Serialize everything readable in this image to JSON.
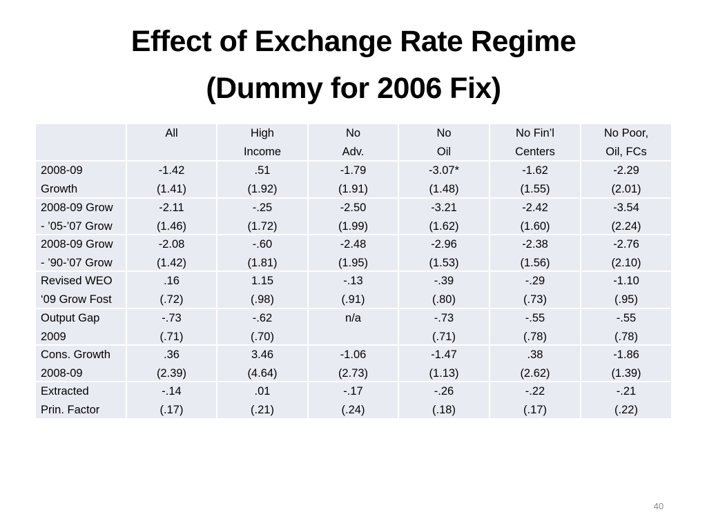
{
  "title": {
    "line1": "Effect of Exchange Rate Regime",
    "line2": "(Dummy for 2006 Fix)"
  },
  "table": {
    "header": [
      [
        "All"
      ],
      [
        "High",
        "Income"
      ],
      [
        "No",
        "Adv."
      ],
      [
        "No",
        "Oil"
      ],
      [
        "No Fin’l",
        "Centers"
      ],
      [
        "No Poor,",
        "Oil, FCs"
      ]
    ],
    "rows": [
      {
        "label": [
          "2008-09",
          "Growth"
        ],
        "cells": [
          [
            "-1.42",
            "(1.41)"
          ],
          [
            ".51",
            "(1.92)"
          ],
          [
            "-1.79",
            "(1.91)"
          ],
          [
            "-3.07*",
            "(1.48)"
          ],
          [
            "-1.62",
            "(1.55)"
          ],
          [
            "-2.29",
            "(2.01)"
          ]
        ]
      },
      {
        "label": [
          "2008-09 Grow",
          "- ’05-’07 Grow"
        ],
        "cells": [
          [
            "-2.11",
            "(1.46)"
          ],
          [
            "-.25",
            "(1.72)"
          ],
          [
            "-2.50",
            "(1.99)"
          ],
          [
            "-3.21",
            "(1.62)"
          ],
          [
            "-2.42",
            "(1.60)"
          ],
          [
            "-3.54",
            "(2.24)"
          ]
        ]
      },
      {
        "label": [
          "2008-09 Grow",
          "- ’90-’07 Grow"
        ],
        "cells": [
          [
            "-2.08",
            "(1.42)"
          ],
          [
            "-.60",
            "(1.81)"
          ],
          [
            "-2.48",
            "(1.95)"
          ],
          [
            "-2.96",
            "(1.53)"
          ],
          [
            "-2.38",
            "(1.56)"
          ],
          [
            "-2.76",
            "(2.10)"
          ]
        ]
      },
      {
        "label": [
          "Revised WEO",
          "‘09 Grow Fost"
        ],
        "cells": [
          [
            ".16",
            "(.72)"
          ],
          [
            "1.15",
            "(.98)"
          ],
          [
            "-.13",
            "(.91)"
          ],
          [
            "-.39",
            "(.80)"
          ],
          [
            "-.29",
            "(.73)"
          ],
          [
            "-1.10",
            "(.95)"
          ]
        ]
      },
      {
        "label": [
          "Output Gap",
          "2009"
        ],
        "cells": [
          [
            "-.73",
            "(.71)"
          ],
          [
            "-.62",
            "(.70)"
          ],
          [
            "n/a"
          ],
          [
            "-.73",
            "(.71)"
          ],
          [
            "-.55",
            "(.78)"
          ],
          [
            "-.55",
            "(.78)"
          ]
        ]
      },
      {
        "label": [
          "Cons. Growth",
          "2008-09"
        ],
        "cells": [
          [
            ".36",
            "(2.39)"
          ],
          [
            "3.46",
            "(4.64)"
          ],
          [
            "-1.06",
            "(2.73)"
          ],
          [
            "-1.47",
            "(1.13)"
          ],
          [
            ".38",
            "(2.62)"
          ],
          [
            "-1.86",
            "(1.39)"
          ]
        ]
      },
      {
        "label": [
          "Extracted",
          "Prin. Factor"
        ],
        "cells": [
          [
            "-.14",
            "(.17)"
          ],
          [
            ".01",
            "(.21)"
          ],
          [
            "-.17",
            "(.24)"
          ],
          [
            "-.26",
            "(.18)"
          ],
          [
            "-.22",
            "(.17)"
          ],
          [
            "-.21",
            "(.22)"
          ]
        ]
      }
    ]
  },
  "page_number": "40"
}
